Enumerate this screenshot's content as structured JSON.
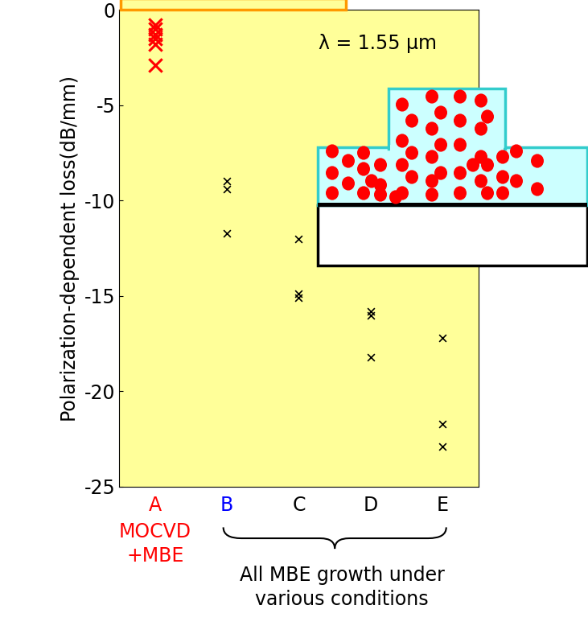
{
  "chart_data": {
    "type": "scatter",
    "y_label": "Polarization-dependent loss(dB/mm)",
    "categories": [
      "A",
      "B",
      "C",
      "D",
      "E"
    ],
    "values": [
      [
        -0.8,
        -1.0,
        -1.3,
        -1.5,
        -1.8,
        -2.9
      ],
      [
        -9.0,
        -9.4,
        -11.7
      ],
      [
        -12.0,
        -14.9,
        -15.1
      ],
      [
        -15.8,
        -16.0,
        -18.2
      ],
      [
        -17.2,
        -21.7,
        -22.9
      ]
    ],
    "colors": [
      "#ff0000",
      "#000000",
      "#000000",
      "#000000",
      "#000000"
    ],
    "marker": "x",
    "ylim": [
      -25,
      0
    ],
    "yticks": [
      -25,
      -20,
      -15,
      -10,
      -5,
      0
    ],
    "annotations": [
      "λ = 1.55 μm",
      "MOCVD\n+MBE",
      "All MBE growth under\nvarious conditions"
    ]
  }
}
